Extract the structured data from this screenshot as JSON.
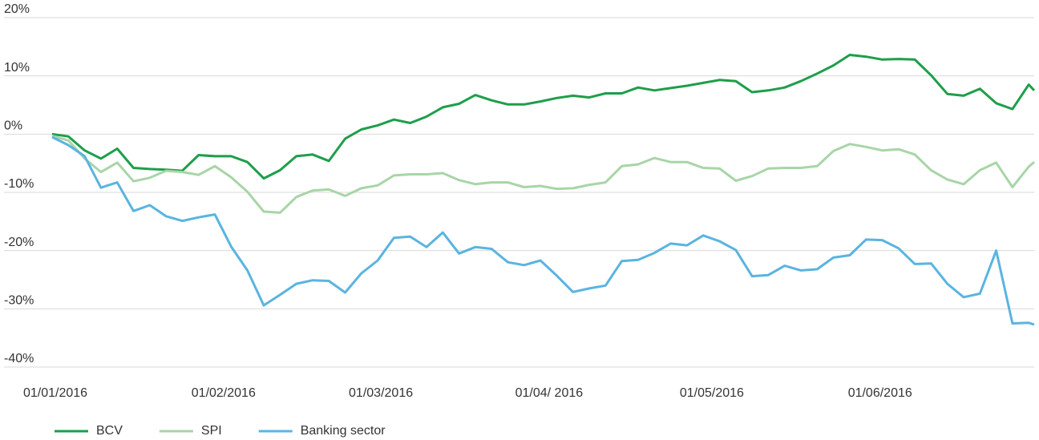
{
  "chart_data": {
    "type": "line",
    "x": [
      "01/01/2016",
      "04/01/2016",
      "07/01/2016",
      "10/01/2016",
      "13/01/2016",
      "16/01/2016",
      "19/01/2016",
      "22/01/2016",
      "25/01/2016",
      "28/01/2016",
      "31/01/2016",
      "03/02/2016",
      "06/02/2016",
      "09/02/2016",
      "12/02/2016",
      "15/02/2016",
      "18/02/2016",
      "21/02/2016",
      "24/02/2016",
      "27/02/2016",
      "01/03/2016",
      "04/03/2016",
      "07/03/2016",
      "10/03/2016",
      "13/03/2016",
      "16/03/2016",
      "19/03/2016",
      "22/03/2016",
      "25/03/2016",
      "28/03/2016",
      "31/03/2016",
      "03/04/2016",
      "06/04/2016",
      "09/04/2016",
      "12/04/2016",
      "15/04/2016",
      "18/04/2016",
      "21/04/2016",
      "24/04/2016",
      "27/04/2016",
      "30/04/2016",
      "03/05/2016",
      "06/05/2016",
      "09/05/2016",
      "12/05/2016",
      "15/05/2016",
      "18/05/2016",
      "21/05/2016",
      "24/05/2016",
      "27/05/2016",
      "30/05/2016",
      "02/06/2016",
      "05/06/2016",
      "08/06/2016",
      "11/06/2016",
      "14/06/2016",
      "17/06/2016",
      "20/06/2016",
      "23/06/2016",
      "26/06/2016",
      "29/06/2016",
      "30/06/2016"
    ],
    "series": [
      {
        "name": "BCV",
        "color": "#1e9e4a",
        "values": [
          0,
          -0.4,
          -2.8,
          -4.2,
          -2.5,
          -5.8,
          -6.0,
          -6.1,
          -6.3,
          -3.6,
          -3.8,
          -3.8,
          -4.8,
          -7.6,
          -6.2,
          -3.8,
          -3.5,
          -4.6,
          -0.8,
          0.8,
          1.5,
          2.5,
          1.9,
          3.0,
          4.6,
          5.2,
          6.7,
          5.8,
          5.1,
          5.1,
          5.6,
          6.2,
          6.6,
          6.3,
          7.0,
          7.0,
          8.0,
          7.5,
          7.9,
          8.3,
          8.8,
          9.3,
          9.1,
          7.2,
          7.5,
          8.0,
          9.1,
          10.4,
          11.8,
          13.6,
          13.3,
          12.8,
          12.9,
          12.8,
          10.1,
          6.9,
          6.6,
          7.8,
          5.3,
          4.3,
          8.5,
          7.5
        ]
      },
      {
        "name": "SPI",
        "color": "#a8d5a8",
        "values": [
          -0.3,
          -1.1,
          -4.2,
          -6.5,
          -4.9,
          -8.1,
          -7.5,
          -6.3,
          -6.5,
          -7.0,
          -5.5,
          -7.4,
          -9.9,
          -13.3,
          -13.5,
          -10.8,
          -9.7,
          -9.5,
          -10.6,
          -9.3,
          -8.8,
          -7.1,
          -6.9,
          -6.9,
          -6.7,
          -7.9,
          -8.6,
          -8.3,
          -8.3,
          -9.1,
          -8.9,
          -9.4,
          -9.3,
          -8.7,
          -8.3,
          -5.5,
          -5.2,
          -4.1,
          -4.8,
          -4.8,
          -5.8,
          -5.9,
          -8.0,
          -7.2,
          -5.9,
          -5.8,
          -5.8,
          -5.5,
          -2.9,
          -1.7,
          -2.2,
          -2.8,
          -2.6,
          -3.5,
          -6.2,
          -7.8,
          -8.6,
          -6.2,
          -4.9,
          -9.1,
          -5.6,
          -4.8
        ]
      },
      {
        "name": "Banking sector",
        "color": "#5ab4e0",
        "values": [
          -0.5,
          -1.9,
          -3.8,
          -9.2,
          -8.3,
          -13.2,
          -12.2,
          -14.1,
          -14.9,
          -14.3,
          -13.8,
          -19.3,
          -23.4,
          -29.4,
          -27.6,
          -25.7,
          -25.1,
          -25.2,
          -27.2,
          -23.9,
          -21.7,
          -17.8,
          -17.6,
          -19.4,
          -16.9,
          -20.5,
          -19.4,
          -19.7,
          -22.0,
          -22.5,
          -21.7,
          -24.3,
          -27.1,
          -26.5,
          -26.0,
          -21.8,
          -21.6,
          -20.4,
          -18.8,
          -19.1,
          -17.4,
          -18.4,
          -19.9,
          -24.4,
          -24.2,
          -22.6,
          -23.4,
          -23.2,
          -21.2,
          -20.8,
          -18.1,
          -18.2,
          -19.6,
          -22.3,
          -22.2,
          -25.7,
          -28.0,
          -27.4,
          -20.0,
          -32.5,
          -32.4,
          -32.7
        ]
      }
    ],
    "xlim": [
      "01/01/2016",
      "30/06/2016"
    ],
    "xticks": [
      "01/01/2016",
      "01/02/2016",
      "01/03/2016",
      {
        "value": "01/04/2016",
        "label": "01/04/ 2016"
      },
      "01/05/2016",
      "01/06/2016"
    ],
    "ylim": [
      -40,
      20
    ],
    "yticks": [
      {
        "value": 20,
        "label": "20%"
      },
      {
        "value": 10,
        "label": "10%"
      },
      {
        "value": 0,
        "label": "0%"
      },
      {
        "value": -10,
        "label": "-10%"
      },
      {
        "value": -20,
        "label": "-20%"
      },
      {
        "value": -30,
        "label": "-30%"
      },
      {
        "value": -40,
        "label": "-40%"
      }
    ],
    "grid": true,
    "legend": "bottom-left"
  }
}
